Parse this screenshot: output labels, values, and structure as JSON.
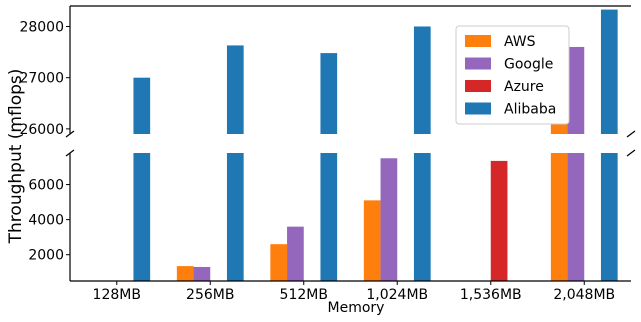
{
  "chart_data": {
    "type": "bar",
    "title": "",
    "xlabel": "Memory",
    "ylabel": "Throughput (mflops)",
    "categories": [
      "128MB",
      "256MB",
      "512MB",
      "1,024MB",
      "1,536MB",
      "2,048MB"
    ],
    "series": [
      {
        "name": "AWS",
        "color": "#ff7f0e",
        "values": [
          100,
          1350,
          2600,
          5100,
          null,
          27600
        ]
      },
      {
        "name": "Google",
        "color": "#9467bd",
        "values": [
          100,
          1300,
          3600,
          7500,
          null,
          27600
        ]
      },
      {
        "name": "Azure",
        "color": "#d62728",
        "values": [
          null,
          null,
          null,
          null,
          7350,
          null
        ]
      },
      {
        "name": "Alibaba",
        "color": "#1f77b4",
        "values": [
          27000,
          27630,
          27480,
          28000,
          null,
          28330
        ]
      }
    ],
    "axis_break": true,
    "ylim_lower": [
      500,
      7800
    ],
    "ylim_upper": [
      25900,
      28400
    ],
    "yticks_lower": [
      2000,
      4000,
      6000
    ],
    "yticks_upper": [
      26000,
      27000,
      28000
    ],
    "ytick_labels_lower": [
      "2000",
      "4000",
      "6000"
    ],
    "ytick_labels_upper": [
      "26000",
      "27000",
      "28000"
    ],
    "legend_position": "upper-right",
    "grid": false
  }
}
